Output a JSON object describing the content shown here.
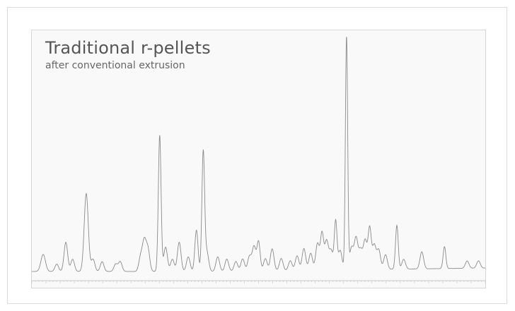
{
  "chart_data": {
    "type": "line",
    "title": "Traditional r-pellets",
    "subtitle": "after conventional extrusion",
    "xlabel": "",
    "ylabel": "",
    "grid": false,
    "xlim": [
      0,
      100
    ],
    "ylim": [
      0,
      100
    ],
    "line_color": "#8a8a8a",
    "series": [
      {
        "peaks": [
          [
            2.5,
            7,
            0.5
          ],
          [
            5.5,
            3,
            0.4
          ],
          [
            7.5,
            12,
            0.4
          ],
          [
            9,
            5,
            0.4
          ],
          [
            12,
            32,
            0.45
          ],
          [
            13.5,
            5,
            0.4
          ],
          [
            15.5,
            4,
            0.4
          ],
          [
            18.5,
            3,
            0.4
          ],
          [
            19.5,
            4,
            0.4
          ],
          [
            24,
            6,
            0.4
          ],
          [
            24.8,
            12,
            0.4
          ],
          [
            25.6,
            9,
            0.4
          ],
          [
            28.2,
            56,
            0.3
          ],
          [
            29.5,
            10,
            0.4
          ],
          [
            31,
            5,
            0.4
          ],
          [
            32.5,
            12,
            0.4
          ],
          [
            34.5,
            6,
            0.4
          ],
          [
            36.3,
            17,
            0.35
          ],
          [
            37.8,
            49,
            0.3
          ],
          [
            38.6,
            8,
            0.4
          ],
          [
            41,
            6,
            0.4
          ],
          [
            43,
            5,
            0.4
          ],
          [
            45,
            4,
            0.4
          ],
          [
            46.5,
            5,
            0.4
          ],
          [
            48,
            6,
            0.4
          ],
          [
            49,
            10,
            0.4
          ],
          [
            50,
            12,
            0.35
          ],
          [
            51.5,
            5,
            0.4
          ],
          [
            53,
            9,
            0.4
          ],
          [
            55,
            5,
            0.4
          ],
          [
            57,
            4,
            0.4
          ],
          [
            58.5,
            6,
            0.4
          ],
          [
            60,
            9,
            0.4
          ],
          [
            61.5,
            7,
            0.4
          ],
          [
            63,
            11,
            0.4
          ],
          [
            64,
            15,
            0.35
          ],
          [
            65,
            12,
            0.4
          ],
          [
            66,
            8,
            0.4
          ],
          [
            67,
            20,
            0.3
          ],
          [
            68,
            8,
            0.4
          ],
          [
            69.4,
            96,
            0.25
          ],
          [
            70.5,
            9,
            0.4
          ],
          [
            71.5,
            13,
            0.4
          ],
          [
            72.5,
            8,
            0.4
          ],
          [
            73.5,
            12,
            0.4
          ],
          [
            74.5,
            17,
            0.35
          ],
          [
            75.5,
            10,
            0.4
          ],
          [
            76.5,
            8,
            0.4
          ],
          [
            78,
            6,
            0.4
          ],
          [
            80.5,
            18,
            0.3
          ],
          [
            82,
            4,
            0.4
          ],
          [
            86,
            7,
            0.4
          ],
          [
            91,
            9,
            0.3
          ],
          [
            96,
            3,
            0.4
          ],
          [
            98.5,
            3,
            0.4
          ]
        ]
      }
    ]
  }
}
